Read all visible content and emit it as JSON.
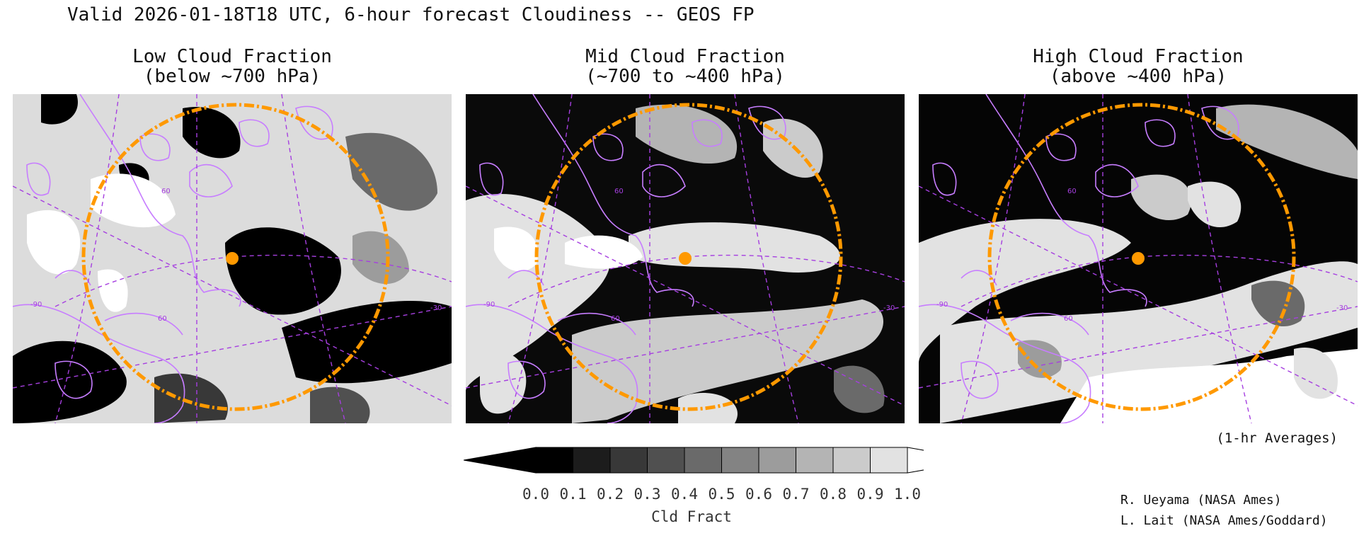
{
  "header": {
    "title": "Valid 2026-01-18T18 UTC, 6-hour forecast Cloudiness -- GEOS FP"
  },
  "panels": [
    {
      "title_line1": "Low Cloud Fraction",
      "title_line2": "(below ~700 hPa)"
    },
    {
      "title_line1": "Mid Cloud Fraction",
      "title_line2": "(~700 to ~400 hPa)"
    },
    {
      "title_line1": "High Cloud Fraction",
      "title_line2": "(above ~400 hPa)"
    }
  ],
  "map_labels": {
    "lat": "60",
    "lon_w": "-90",
    "lon_e": "-30",
    "lon_mid": "60"
  },
  "colorbar": {
    "label": "Cld Fract",
    "ticks": [
      "0.0",
      "0.1",
      "0.2",
      "0.3",
      "0.4",
      "0.5",
      "0.6",
      "0.7",
      "0.8",
      "0.9",
      "1.0"
    ],
    "shades": [
      "#000000",
      "#1c1c1c",
      "#383838",
      "#505050",
      "#6a6a6a",
      "#838383",
      "#9c9c9c",
      "#b4b4b4",
      "#cbcbcb",
      "#e2e2e2"
    ]
  },
  "notes": {
    "averages": "(1-hr Averages)",
    "credit_1": "R. Ueyama (NASA Ames)",
    "credit_2": "L. Lait (NASA Ames/Goddard)"
  },
  "colors": {
    "coastline": "#c77dff",
    "grid": "#a63fe0",
    "range_ring": "#ff9900",
    "station": "#ff9900"
  }
}
